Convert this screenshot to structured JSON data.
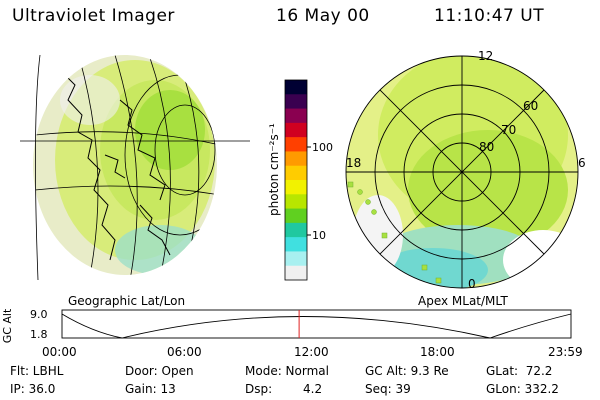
{
  "header": {
    "instrument": "Ultraviolet Imager",
    "date": "16 May 00",
    "time": "11:10:47 UT"
  },
  "left_panel": {
    "label": "Geographic Lat/Lon"
  },
  "right_panel": {
    "label": "Apex MLat/MLT",
    "lat_labels": [
      "60",
      "70",
      "80"
    ],
    "mlt_labels": [
      "12",
      "18",
      "6",
      "0"
    ]
  },
  "colorbar": {
    "unit_label": "photon cm⁻²s⁻¹",
    "ticks": [
      "100",
      "10"
    ],
    "colors": [
      "#000033",
      "#3a0050",
      "#8a0050",
      "#d00020",
      "#ff4000",
      "#ff9a00",
      "#ffcc00",
      "#f2f200",
      "#b8e600",
      "#60d020",
      "#20c8a0",
      "#40e0e0",
      "#a8f0f0",
      "#f0f0f0"
    ]
  },
  "altitude_plot": {
    "ylabel": "GC Alt",
    "yticks": [
      "9.0",
      "1.8"
    ],
    "xticks": [
      "00:00",
      "06:00",
      "12:00",
      "18:00",
      "23:59"
    ],
    "current_time_hours": 11.18
  },
  "info": {
    "filter": "Flt: LBHL",
    "ip": "IP: 36.0",
    "door": "Door: Open",
    "gain": "Gain: 13",
    "mode": "Mode: Normal",
    "dsp_label": "Dsp:",
    "dsp_value": "4.2",
    "gc_alt": "GC Alt: 9.3 Re",
    "seq": "Seq: 39",
    "glat": "GLat:  72.2",
    "glon": "GLon: 332.2"
  }
}
